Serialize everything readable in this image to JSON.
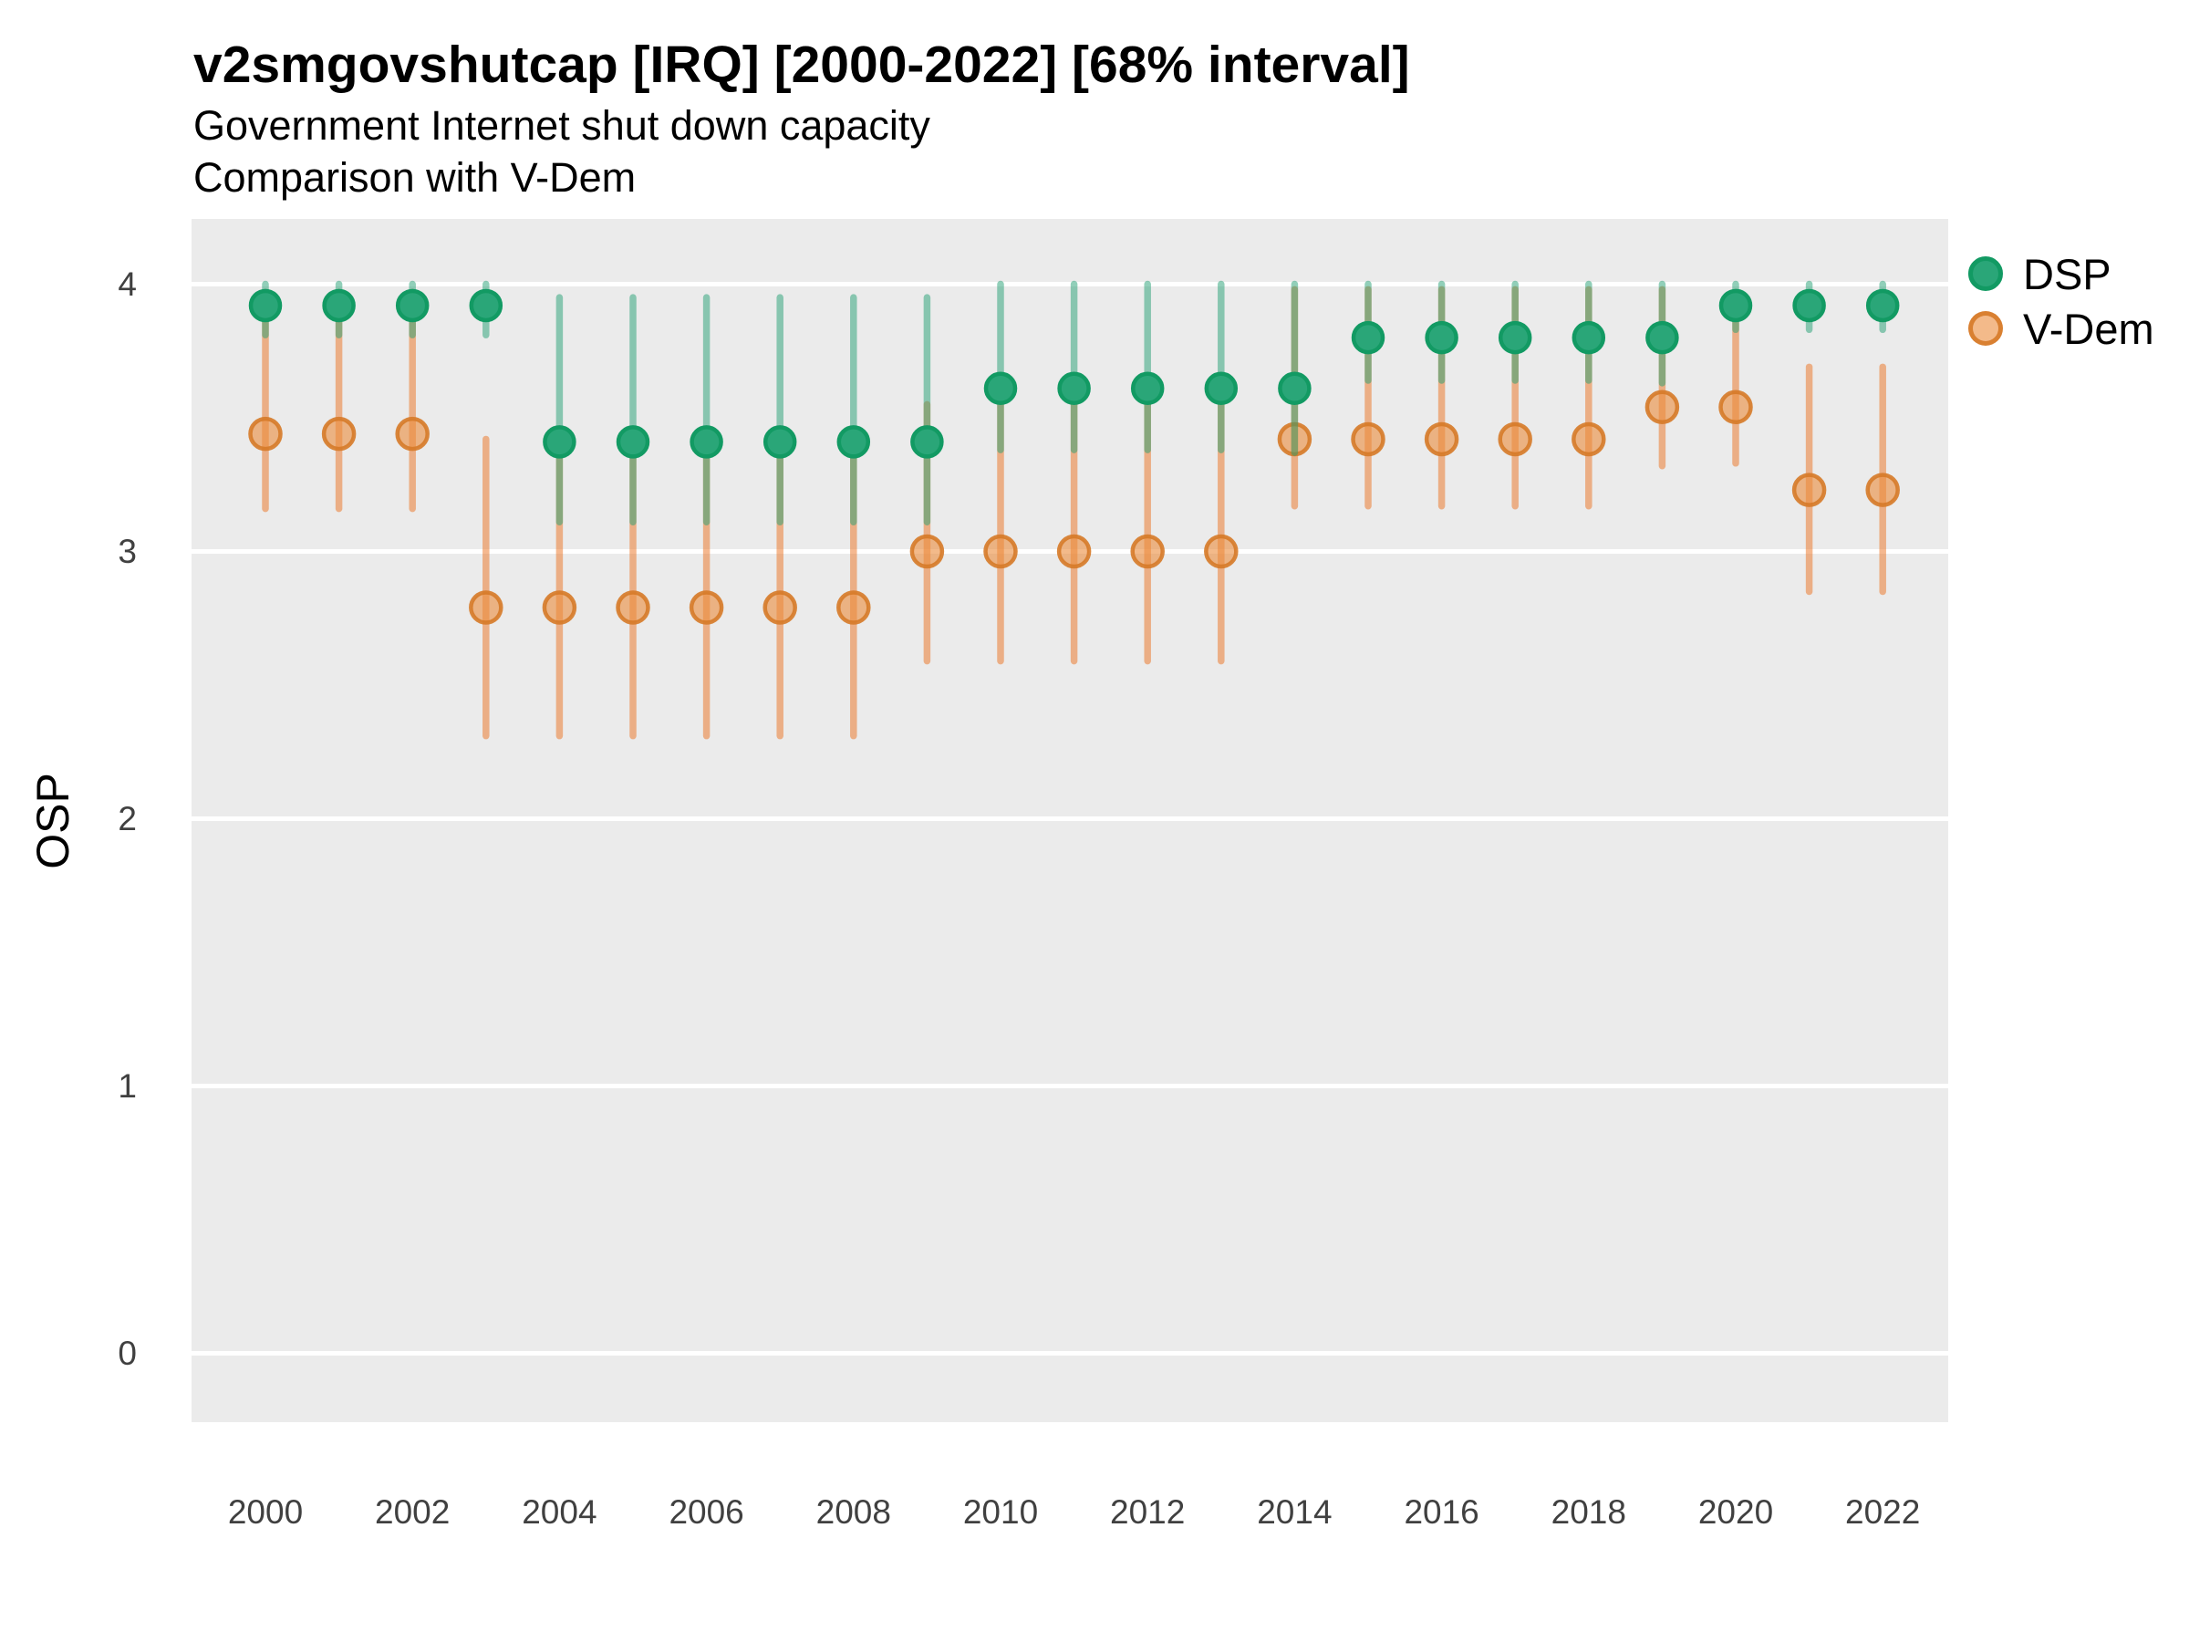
{
  "colors": {
    "background": "#FFFFFF",
    "panel": "#EBEBEB",
    "gridline": "#FFFFFF",
    "dsp_dot_fill": "#2AA678",
    "dsp_dot_stroke": "#129A63",
    "dsp_interval": "rgba(35,160,115,0.5)",
    "vdem_dot_fill": "rgba(235,140,60,0.6)",
    "vdem_dot_stroke": "rgba(214,122,40,0.9)",
    "vdem_interval": "rgba(235,113,31,0.5)",
    "tick_text": "#404040",
    "text": "#000000"
  },
  "chart_data": {
    "type": "pointrange-scatter",
    "title": "v2smgovshutcap [IRQ] [2000-2022] [68% interval]",
    "subtitle1": "Government Internet shut down capacity",
    "subtitle2": "Comparison with V-Dem",
    "ylabel": "OSP",
    "xlabel": "",
    "x_ticks": [
      2000,
      2002,
      2004,
      2006,
      2008,
      2010,
      2012,
      2014,
      2016,
      2018,
      2020,
      2022
    ],
    "y_ticks": [
      4,
      3,
      2,
      1,
      0
    ],
    "xlim": [
      1999,
      2023
    ],
    "ylim": [
      -0.26,
      4.26
    ],
    "grid": "major-horizontal-white-on-gray",
    "legend_position": "top-right",
    "series": [
      {
        "name": "DSP",
        "points": [
          {
            "year": 2000,
            "value": 3.92,
            "lo": 3.81,
            "hi": 4.0
          },
          {
            "year": 2001,
            "value": 3.92,
            "lo": 3.81,
            "hi": 4.0
          },
          {
            "year": 2002,
            "value": 3.92,
            "lo": 3.81,
            "hi": 4.0
          },
          {
            "year": 2003,
            "value": 3.92,
            "lo": 3.81,
            "hi": 4.0
          },
          {
            "year": 2004,
            "value": 3.41,
            "lo": 3.11,
            "hi": 3.95
          },
          {
            "year": 2005,
            "value": 3.41,
            "lo": 3.11,
            "hi": 3.95
          },
          {
            "year": 2006,
            "value": 3.41,
            "lo": 3.11,
            "hi": 3.95
          },
          {
            "year": 2007,
            "value": 3.41,
            "lo": 3.11,
            "hi": 3.95
          },
          {
            "year": 2008,
            "value": 3.41,
            "lo": 3.11,
            "hi": 3.95
          },
          {
            "year": 2009,
            "value": 3.41,
            "lo": 3.11,
            "hi": 3.95
          },
          {
            "year": 2010,
            "value": 3.61,
            "lo": 3.38,
            "hi": 4.0
          },
          {
            "year": 2011,
            "value": 3.61,
            "lo": 3.38,
            "hi": 4.0
          },
          {
            "year": 2012,
            "value": 3.61,
            "lo": 3.38,
            "hi": 4.0
          },
          {
            "year": 2013,
            "value": 3.61,
            "lo": 3.38,
            "hi": 4.0
          },
          {
            "year": 2014,
            "value": 3.61,
            "lo": 3.37,
            "hi": 4.0
          },
          {
            "year": 2015,
            "value": 3.8,
            "lo": 3.64,
            "hi": 4.0
          },
          {
            "year": 2016,
            "value": 3.8,
            "lo": 3.64,
            "hi": 4.0
          },
          {
            "year": 2017,
            "value": 3.8,
            "lo": 3.64,
            "hi": 4.0
          },
          {
            "year": 2018,
            "value": 3.8,
            "lo": 3.64,
            "hi": 4.0
          },
          {
            "year": 2019,
            "value": 3.8,
            "lo": 3.63,
            "hi": 4.0
          },
          {
            "year": 2020,
            "value": 3.92,
            "lo": 3.83,
            "hi": 4.0
          },
          {
            "year": 2021,
            "value": 3.92,
            "lo": 3.83,
            "hi": 4.0
          },
          {
            "year": 2022,
            "value": 3.92,
            "lo": 3.83,
            "hi": 4.0
          }
        ]
      },
      {
        "name": "V-Dem",
        "points": [
          {
            "year": 2000,
            "value": 3.44,
            "lo": 3.16,
            "hi": 3.97
          },
          {
            "year": 2001,
            "value": 3.44,
            "lo": 3.16,
            "hi": 3.97
          },
          {
            "year": 2002,
            "value": 3.44,
            "lo": 3.16,
            "hi": 3.97
          },
          {
            "year": 2003,
            "value": 2.79,
            "lo": 2.31,
            "hi": 3.42
          },
          {
            "year": 2004,
            "value": 2.79,
            "lo": 2.31,
            "hi": 3.41
          },
          {
            "year": 2005,
            "value": 2.79,
            "lo": 2.31,
            "hi": 3.41
          },
          {
            "year": 2006,
            "value": 2.79,
            "lo": 2.31,
            "hi": 3.41
          },
          {
            "year": 2007,
            "value": 2.79,
            "lo": 2.31,
            "hi": 3.41
          },
          {
            "year": 2008,
            "value": 2.79,
            "lo": 2.31,
            "hi": 3.41
          },
          {
            "year": 2009,
            "value": 3.0,
            "lo": 2.59,
            "hi": 3.55
          },
          {
            "year": 2010,
            "value": 3.0,
            "lo": 2.59,
            "hi": 3.56
          },
          {
            "year": 2011,
            "value": 3.0,
            "lo": 2.59,
            "hi": 3.56
          },
          {
            "year": 2012,
            "value": 3.0,
            "lo": 2.59,
            "hi": 3.56
          },
          {
            "year": 2013,
            "value": 3.0,
            "lo": 2.59,
            "hi": 3.56
          },
          {
            "year": 2014,
            "value": 3.42,
            "lo": 3.17,
            "hi": 3.98
          },
          {
            "year": 2015,
            "value": 3.42,
            "lo": 3.17,
            "hi": 3.98
          },
          {
            "year": 2016,
            "value": 3.42,
            "lo": 3.17,
            "hi": 3.98
          },
          {
            "year": 2017,
            "value": 3.42,
            "lo": 3.17,
            "hi": 3.98
          },
          {
            "year": 2018,
            "value": 3.42,
            "lo": 3.17,
            "hi": 3.98
          },
          {
            "year": 2019,
            "value": 3.54,
            "lo": 3.32,
            "hi": 3.98
          },
          {
            "year": 2020,
            "value": 3.54,
            "lo": 3.33,
            "hi": 3.97
          },
          {
            "year": 2021,
            "value": 3.23,
            "lo": 2.85,
            "hi": 3.69
          },
          {
            "year": 2022,
            "value": 3.23,
            "lo": 2.85,
            "hi": 3.69
          }
        ]
      }
    ],
    "legend": [
      {
        "label": "DSP"
      },
      {
        "label": "V-Dem"
      }
    ]
  }
}
